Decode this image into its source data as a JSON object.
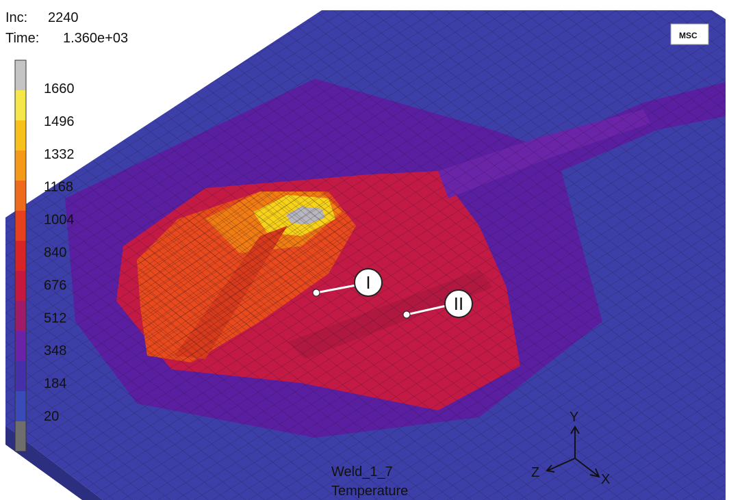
{
  "header": {
    "inc_label": "Inc:",
    "inc": "2240",
    "time_label": "Time:",
    "time": "1.360e+03"
  },
  "legend": {
    "ticks": [
      1660,
      1496,
      1332,
      1168,
      1004,
      840,
      676,
      512,
      348,
      184,
      20
    ]
  },
  "callouts": [
    "I",
    "II"
  ],
  "footer": {
    "job": "Weld_1_7",
    "variable": "Temperature"
  },
  "triad": {
    "y": "Y",
    "z": "Z",
    "x": "X"
  },
  "logo": "MSC"
}
